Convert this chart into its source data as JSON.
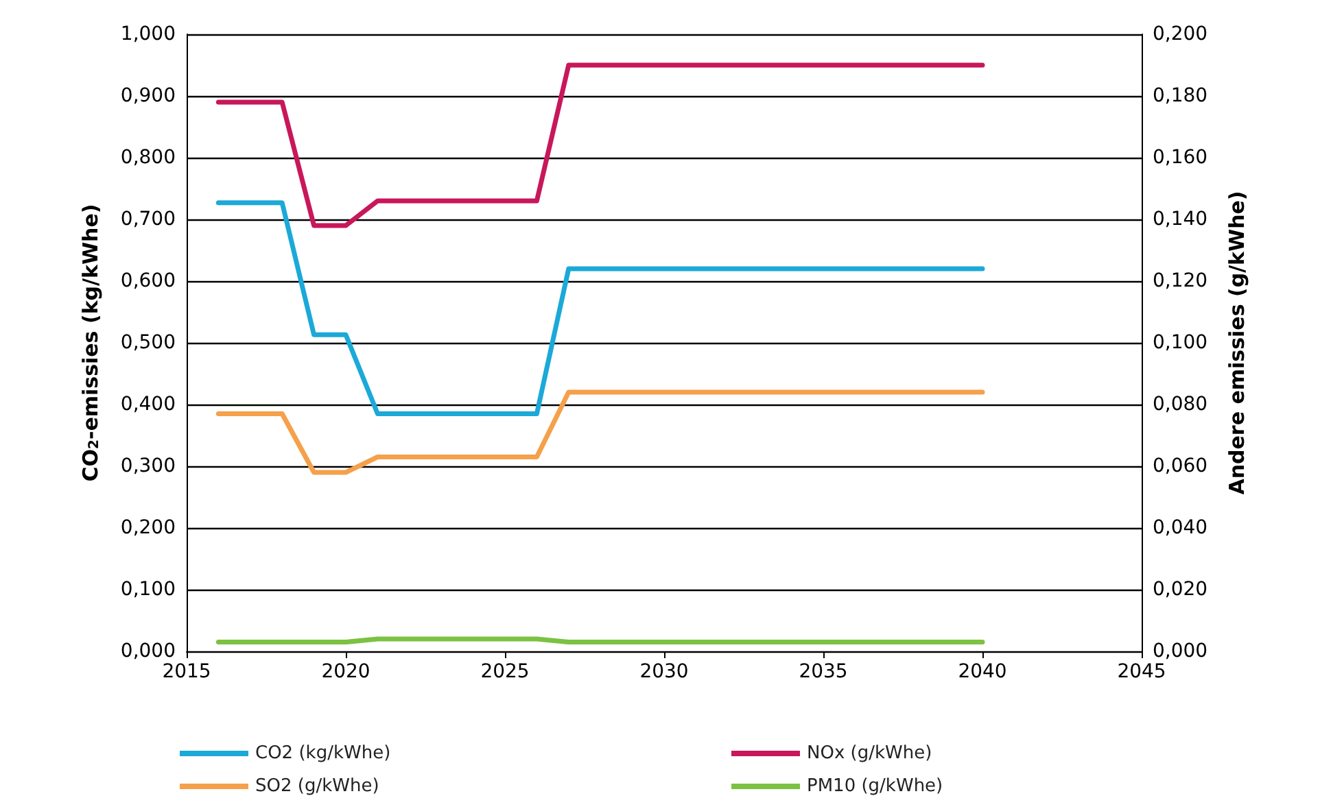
{
  "chart_data": {
    "type": "line",
    "xlabel": null,
    "ylabel": "CO$_{2}$-emissies (kg/kWhe)",
    "y2label": "Andere emissies (g/kWhe)",
    "x": [
      2016,
      2018,
      2019,
      2020,
      2021,
      2026,
      2027,
      2040
    ],
    "xlim": [
      2015,
      2045
    ],
    "xticks": [
      2015,
      2020,
      2025,
      2030,
      2035,
      2040,
      2045
    ],
    "ylim": [
      0,
      1
    ],
    "yticks": [
      {
        "value": 0,
        "label": "0,000"
      },
      {
        "value": 0.1,
        "label": "0,100"
      },
      {
        "value": 0.2,
        "label": "0,200"
      },
      {
        "value": 0.3,
        "label": "0,300"
      },
      {
        "value": 0.4,
        "label": "0,400"
      },
      {
        "value": 0.5,
        "label": "0,500"
      },
      {
        "value": 0.6,
        "label": "0,600"
      },
      {
        "value": 0.7,
        "label": "0,700"
      },
      {
        "value": 0.8,
        "label": "0,800"
      },
      {
        "value": 0.9,
        "label": "0,900"
      },
      {
        "value": 1,
        "label": "1,000"
      }
    ],
    "y2lim": [
      0,
      0.2
    ],
    "y2ticks": [
      {
        "value": 0,
        "label": "0,000"
      },
      {
        "value": 0.02,
        "label": "0,020"
      },
      {
        "value": 0.04,
        "label": "0,040"
      },
      {
        "value": 0.06,
        "label": "0,060"
      },
      {
        "value": 0.08,
        "label": "0,080"
      },
      {
        "value": 0.1,
        "label": "0,100"
      },
      {
        "value": 0.12,
        "label": "0,120"
      },
      {
        "value": 0.14,
        "label": "0,140"
      },
      {
        "value": 0.16,
        "label": "0,160"
      },
      {
        "value": 0.18,
        "label": "0,180"
      },
      {
        "value": 0.2,
        "label": "0,200"
      }
    ],
    "series": [
      {
        "name": "CO2 (kg/kWhe)",
        "color": "#1ba9d8",
        "values": [
          0.727,
          0.727,
          0.513,
          0.513,
          0.385,
          0.385,
          0.62,
          0.62
        ]
      },
      {
        "name": "NOx (g/kWhe)",
        "color": "#c8175a",
        "axis": "y2",
        "values": [
          0.178,
          0.178,
          0.138,
          0.138,
          0.146,
          0.146,
          0.19,
          0.19
        ]
      },
      {
        "name": "SO2 (g/kWhe)",
        "color": "#f5a04a",
        "axis": "y2",
        "values": [
          0.077,
          0.077,
          0.058,
          0.058,
          0.063,
          0.063,
          0.084,
          0.084
        ]
      },
      {
        "name": "PM10 (g/kWhe)",
        "color": "#7cc242",
        "axis": "y2",
        "values": [
          0.003,
          0.003,
          0.003,
          0.003,
          0.004,
          0.004,
          0.003,
          0.003
        ]
      }
    ],
    "grid": "y",
    "legend": "bottom",
    "marker": "none",
    "line_style": "solid"
  }
}
